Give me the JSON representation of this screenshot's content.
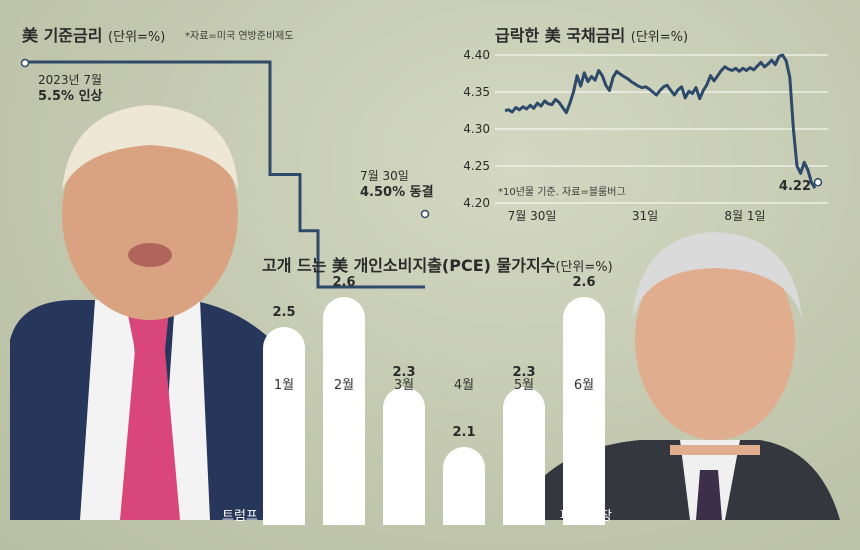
{
  "chart_data": [
    {
      "type": "line",
      "title": "美 기준금리",
      "unit": "(단위=%)",
      "source": "*자료=미국 연방준비제도",
      "x": [
        "2023-07",
        "2024-09",
        "2024-11",
        "2024-12",
        "2025-07"
      ],
      "values": [
        5.5,
        5.0,
        4.75,
        4.5,
        4.5
      ],
      "annotations": [
        {
          "date": "2023년 7월",
          "text": "5.5% 인상"
        },
        {
          "date": "7월 30일",
          "text": "4.50% 동결"
        }
      ]
    },
    {
      "type": "line",
      "title": "급락한 美 국채금리",
      "unit": "(단위=%)",
      "source": "*10년물 기준. 자료=블룸버그",
      "x_ticks": [
        "7월 30일",
        "31일",
        "8월 1일"
      ],
      "yticks": [
        "4.40",
        "4.35",
        "4.30",
        "4.25",
        "4.20"
      ],
      "ylim": [
        4.2,
        4.4
      ],
      "values": [
        4.325,
        4.326,
        4.323,
        4.329,
        4.326,
        4.33,
        4.327,
        4.332,
        4.328,
        4.335,
        4.331,
        4.338,
        4.334,
        4.333,
        4.34,
        4.336,
        4.329,
        4.322,
        4.335,
        4.35,
        4.372,
        4.358,
        4.376,
        4.364,
        4.371,
        4.366,
        4.379,
        4.372,
        4.359,
        4.352,
        4.37,
        4.378,
        4.374,
        4.371,
        4.368,
        4.364,
        4.361,
        4.358,
        4.356,
        4.357,
        4.354,
        4.35,
        4.346,
        4.352,
        4.357,
        4.359,
        4.352,
        4.346,
        4.353,
        4.357,
        4.342,
        4.351,
        4.348,
        4.356,
        4.341,
        4.352,
        4.36,
        4.372,
        4.365,
        4.372,
        4.379,
        4.384,
        4.381,
        4.379,
        4.382,
        4.378,
        4.382,
        4.379,
        4.383,
        4.38,
        4.385,
        4.39,
        4.384,
        4.388,
        4.393,
        4.387,
        4.398,
        4.4,
        4.392,
        4.37,
        4.3,
        4.25,
        4.24,
        4.255,
        4.245,
        4.228,
        4.22
      ],
      "last_label": "4.22"
    },
    {
      "type": "bar",
      "title": "고개 드는 美 개인소비지출(PCE) 물가지수",
      "unit": "(단위=%)",
      "categories": [
        "1월",
        "2월",
        "3월",
        "4월",
        "5월",
        "6월"
      ],
      "values": [
        2.5,
        2.6,
        2.3,
        2.1,
        2.3,
        2.6
      ]
    }
  ],
  "captions": {
    "left": "트럼프 대통령",
    "right": "파월 의장"
  },
  "colors": {
    "line": "#2d4a6a",
    "bar": "#ffffff",
    "text": "#2b2b2b"
  }
}
